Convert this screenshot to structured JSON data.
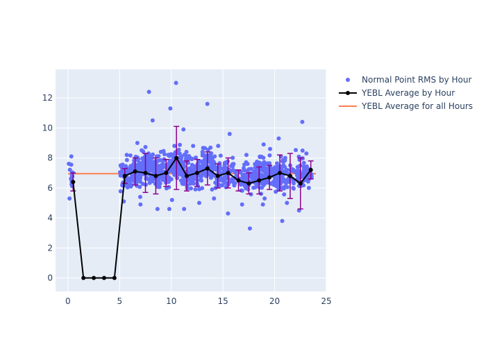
{
  "chart_data": {
    "type": "scatter",
    "title": "",
    "xlabel": "",
    "ylabel": "",
    "xlim": [
      -1.2,
      25
    ],
    "ylim": [
      -0.9,
      13.9
    ],
    "x_ticks": [
      0,
      5,
      10,
      15,
      20,
      25
    ],
    "y_ticks": [
      0,
      2,
      4,
      6,
      8,
      10,
      12
    ],
    "grid": true,
    "legend_position": "right",
    "colors": {
      "plot_bg": "#E5ECF6",
      "grid": "#ffffff",
      "points": "#636EFA",
      "average_line": "#000000",
      "error_bars": "#8B008B",
      "overall_line": "#FF7F50"
    },
    "series": [
      {
        "name": "Normal Point RMS by Hour",
        "kind": "points",
        "hour_groups": [
          {
            "x_range": [
              0.0,
              0.5
            ],
            "count": 14,
            "y_min": 5.3,
            "y_max": 8.1
          },
          {
            "x_range": [
              5.0,
              6.0
            ],
            "count": 45,
            "y_min": 5.1,
            "y_max": 8.2
          },
          {
            "x_range": [
              6.0,
              7.0
            ],
            "count": 70,
            "y_min": 5.4,
            "y_max": 9.0
          },
          {
            "x_range": [
              7.0,
              8.0
            ],
            "count": 85,
            "y_min": 4.9,
            "y_max": 12.4
          },
          {
            "x_range": [
              8.0,
              9.0
            ],
            "count": 75,
            "y_min": 4.6,
            "y_max": 10.5
          },
          {
            "x_range": [
              9.0,
              10.0
            ],
            "count": 80,
            "y_min": 4.6,
            "y_max": 11.3
          },
          {
            "x_range": [
              10.0,
              11.0
            ],
            "count": 100,
            "y_min": 5.2,
            "y_max": 13.0
          },
          {
            "x_range": [
              11.0,
              12.0
            ],
            "count": 90,
            "y_min": 4.6,
            "y_max": 9.9
          },
          {
            "x_range": [
              12.0,
              13.0
            ],
            "count": 60,
            "y_min": 5.0,
            "y_max": 8.8
          },
          {
            "x_range": [
              13.0,
              14.0
            ],
            "count": 75,
            "y_min": 5.9,
            "y_max": 11.6
          },
          {
            "x_range": [
              14.0,
              15.0
            ],
            "count": 45,
            "y_min": 5.3,
            "y_max": 8.8
          },
          {
            "x_range": [
              15.0,
              16.0
            ],
            "count": 40,
            "y_min": 4.3,
            "y_max": 9.6
          },
          {
            "x_range": [
              16.0,
              17.0
            ],
            "count": 30,
            "y_min": 4.9,
            "y_max": 7.6
          },
          {
            "x_range": [
              17.0,
              18.0
            ],
            "count": 45,
            "y_min": 3.3,
            "y_max": 8.2
          },
          {
            "x_range": [
              18.0,
              19.0
            ],
            "count": 70,
            "y_min": 4.9,
            "y_max": 8.9
          },
          {
            "x_range": [
              19.0,
              20.0
            ],
            "count": 40,
            "y_min": 5.3,
            "y_max": 8.6
          },
          {
            "x_range": [
              20.0,
              21.0
            ],
            "count": 75,
            "y_min": 3.8,
            "y_max": 9.3
          },
          {
            "x_range": [
              21.0,
              22.0
            ],
            "count": 25,
            "y_min": 5.0,
            "y_max": 8.0
          },
          {
            "x_range": [
              22.0,
              23.0
            ],
            "count": 45,
            "y_min": 4.5,
            "y_max": 10.4
          },
          {
            "x_range": [
              23.0,
              23.6
            ],
            "count": 25,
            "y_min": 6.0,
            "y_max": 8.3
          }
        ]
      },
      {
        "name": "YEBL Average by Hour",
        "kind": "line+markers",
        "x": [
          0.5,
          1.5,
          2.5,
          3.5,
          4.5,
          5.5,
          6.5,
          7.5,
          8.5,
          9.5,
          10.5,
          11.5,
          12.5,
          13.5,
          14.5,
          15.5,
          16.5,
          17.5,
          18.5,
          19.5,
          20.5,
          21.5,
          22.5,
          23.5
        ],
        "y": [
          6.4,
          0,
          0,
          0,
          0,
          6.8,
          7.1,
          7.0,
          6.8,
          7.0,
          8.0,
          6.8,
          7.0,
          7.3,
          6.8,
          7.0,
          6.5,
          6.3,
          6.5,
          6.7,
          7.0,
          6.8,
          6.3,
          7.2
        ],
        "error": [
          0.6,
          0,
          0,
          0,
          0,
          0.5,
          0.9,
          1.3,
          1.2,
          0.9,
          2.1,
          1.0,
          0.9,
          1.1,
          0.8,
          1.0,
          0.7,
          0.7,
          0.9,
          0.8,
          1.2,
          1.5,
          1.7,
          0.6
        ]
      },
      {
        "name": "YEBL Average for all Hours",
        "kind": "horizontal-line",
        "y": 6.95,
        "x_range": [
          0,
          24
        ]
      }
    ]
  }
}
